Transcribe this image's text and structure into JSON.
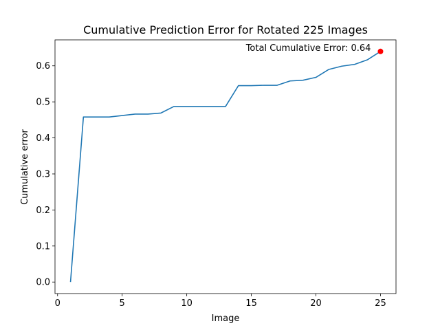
{
  "chart_data": {
    "type": "line",
    "title": "Cumulative Prediction Error for Rotated 225 Images",
    "xlabel": "Image",
    "ylabel": "Cumulative error",
    "xlim": [
      -0.2,
      26.2
    ],
    "ylim": [
      -0.032,
      0.672
    ],
    "xticks": [
      0,
      5,
      10,
      15,
      20,
      25
    ],
    "yticks": [
      0.0,
      0.1,
      0.2,
      0.3,
      0.4,
      0.5,
      0.6
    ],
    "ytick_labels": [
      "0.0",
      "0.1",
      "0.2",
      "0.3",
      "0.4",
      "0.5",
      "0.6"
    ],
    "grid": false,
    "series": [
      {
        "color": "#1f77b4",
        "x": [
          1,
          2,
          3,
          4,
          5,
          6,
          7,
          8,
          9,
          10,
          11,
          12,
          13,
          14,
          15,
          16,
          17,
          18,
          19,
          20,
          21,
          22,
          23,
          24,
          25
        ],
        "y": [
          0.0,
          0.458,
          0.458,
          0.458,
          0.462,
          0.466,
          0.466,
          0.469,
          0.487,
          0.487,
          0.487,
          0.487,
          0.487,
          0.545,
          0.545,
          0.546,
          0.546,
          0.558,
          0.56,
          0.568,
          0.59,
          0.599,
          0.604,
          0.617,
          0.64
        ]
      }
    ],
    "highlight_point": {
      "x": 25,
      "y": 0.64,
      "color": "#ff0000"
    },
    "annotation": {
      "text": "Total Cumulative Error: 0.64",
      "x": 25,
      "y": 0.64
    }
  }
}
